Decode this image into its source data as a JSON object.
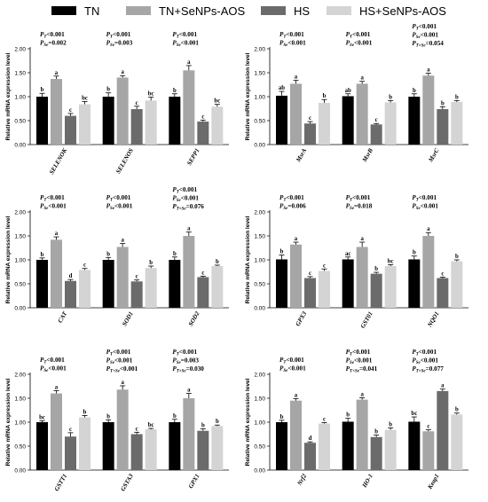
{
  "legend": [
    {
      "label": "TN",
      "color": "#000000"
    },
    {
      "label": "TN+SeNPs-AOS",
      "color": "#a6a6a6"
    },
    {
      "label": "HS",
      "color": "#6b6b6b"
    },
    {
      "label": "HS+SeNPs-AOS",
      "color": "#d4d4d4"
    }
  ],
  "chart_data": [
    {
      "type": "bar",
      "ylabel": "Relative mRNA expression level",
      "ylim": [
        0,
        2.0
      ],
      "yticks": [
        "0.00",
        "0.50",
        "1.00",
        "1.50",
        "2.00"
      ],
      "categories": [
        "SELENOK",
        "SELENOS",
        "SEPP1"
      ],
      "series": [
        {
          "name": "TN",
          "values": [
            1.0,
            1.0,
            1.0
          ],
          "errors": [
            0.07,
            0.08,
            0.06
          ],
          "letters": [
            "b",
            "b",
            "b"
          ]
        },
        {
          "name": "TN+SeNPs-AOS",
          "values": [
            1.37,
            1.4,
            1.55
          ],
          "errors": [
            0.06,
            0.04,
            0.1
          ],
          "letters": [
            "a",
            "a",
            "a"
          ]
        },
        {
          "name": "HS",
          "values": [
            0.6,
            0.74,
            0.48
          ],
          "errors": [
            0.05,
            0.06,
            0.03
          ],
          "letters": [
            "c",
            "c",
            "c"
          ]
        },
        {
          "name": "HS+SeNPs-AOS",
          "values": [
            0.84,
            0.92,
            0.79
          ],
          "errors": [
            0.06,
            0.07,
            0.05
          ],
          "letters": [
            "bc",
            "bc",
            "bc"
          ]
        }
      ],
      "pvalues": [
        [
          "PT<0.001",
          "PSe=0.002"
        ],
        [
          "PT<0.001",
          "PSe=0.003"
        ],
        [
          "PT<0.001",
          "PSe<0.001"
        ]
      ]
    },
    {
      "type": "bar",
      "ylabel": "Relative mRNA expression level",
      "ylim": [
        0,
        2.0
      ],
      "yticks": [
        "0.00",
        "0.50",
        "1.00",
        "1.50",
        "2.00"
      ],
      "categories": [
        "MsrA",
        "MsrB",
        "MsrC"
      ],
      "series": [
        {
          "name": "TN",
          "values": [
            1.02,
            1.01,
            1.0
          ],
          "errors": [
            0.09,
            0.05,
            0.06
          ],
          "letters": [
            "ab",
            "ab",
            "b"
          ]
        },
        {
          "name": "TN+SeNPs-AOS",
          "values": [
            1.27,
            1.27,
            1.44
          ],
          "errors": [
            0.07,
            0.05,
            0.05
          ],
          "letters": [
            "a",
            "a",
            "a"
          ]
        },
        {
          "name": "HS",
          "values": [
            0.44,
            0.42,
            0.74
          ],
          "errors": [
            0.04,
            0.02,
            0.05
          ],
          "letters": [
            "c",
            "c",
            "b"
          ]
        },
        {
          "name": "HS+SeNPs-AOS",
          "values": [
            0.87,
            0.88,
            0.89
          ],
          "errors": [
            0.07,
            0.04,
            0.03
          ],
          "letters": [
            "b",
            "b",
            "b"
          ]
        }
      ],
      "pvalues": [
        [
          "PT<0.001",
          "PSe<0.001"
        ],
        [
          "PT<0.001",
          "PSe<0.001"
        ],
        [
          "PT<0.001",
          "PSe<0.001",
          "PT×Se=0.054"
        ]
      ]
    },
    {
      "type": "bar",
      "ylabel": "Relative mRNA expression level",
      "ylim": [
        0,
        2.0
      ],
      "yticks": [
        "0.00",
        "0.50",
        "1.00",
        "1.50",
        "2.00"
      ],
      "categories": [
        "CAT",
        "SOD1",
        "SOD2"
      ],
      "series": [
        {
          "name": "TN",
          "values": [
            1.0,
            1.0,
            1.0
          ],
          "errors": [
            0.04,
            0.05,
            0.06
          ],
          "letters": [
            "b",
            "b",
            "b"
          ]
        },
        {
          "name": "TN+SeNPs-AOS",
          "values": [
            1.42,
            1.27,
            1.5
          ],
          "errors": [
            0.06,
            0.07,
            0.08
          ],
          "letters": [
            "a",
            "a",
            "a"
          ]
        },
        {
          "name": "HS",
          "values": [
            0.56,
            0.55,
            0.64
          ],
          "errors": [
            0.03,
            0.03,
            0.02
          ],
          "letters": [
            "d",
            "c",
            "c"
          ]
        },
        {
          "name": "HS+SeNPs-AOS",
          "values": [
            0.79,
            0.83,
            0.87
          ],
          "errors": [
            0.03,
            0.04,
            0.02
          ],
          "letters": [
            "c",
            "b",
            "b"
          ]
        }
      ],
      "pvalues": [
        [
          "PT<0.001",
          "PSe<0.001"
        ],
        [
          "PT<0.001",
          "PSe<0.001"
        ],
        [
          "PT<0.001",
          "PSe<0.001",
          "PT×Se=0.076"
        ]
      ]
    },
    {
      "type": "bar",
      "ylabel": "Relative mRNA expression level",
      "ylim": [
        0,
        2.0
      ],
      "yticks": [
        "0.00",
        "0.50",
        "1.00",
        "1.50",
        "2.00"
      ],
      "categories": [
        "GPX3",
        "GST01",
        "NQO1"
      ],
      "series": [
        {
          "name": "TN",
          "values": [
            1.01,
            1.01,
            1.01
          ],
          "errors": [
            0.09,
            0.05,
            0.07
          ],
          "letters": [
            "b",
            "ac",
            "b"
          ]
        },
        {
          "name": "TN+SeNPs-AOS",
          "values": [
            1.32,
            1.27,
            1.5
          ],
          "errors": [
            0.05,
            0.1,
            0.07
          ],
          "letters": [
            "a",
            "a",
            "a"
          ]
        },
        {
          "name": "HS",
          "values": [
            0.62,
            0.71,
            0.62
          ],
          "errors": [
            0.03,
            0.03,
            0.02
          ],
          "letters": [
            "c",
            "b",
            "c"
          ]
        },
        {
          "name": "HS+SeNPs-AOS",
          "values": [
            0.77,
            0.87,
            0.97
          ],
          "errors": [
            0.04,
            0.03,
            0.03
          ],
          "letters": [
            "c",
            "bc",
            "b"
          ]
        }
      ],
      "pvalues": [
        [
          "PT<0.001",
          "PSe=0.006"
        ],
        [
          "PT<0.001",
          "PSe=0.018"
        ],
        [
          "PT<0.001",
          "PSe<0.001"
        ]
      ]
    },
    {
      "type": "bar",
      "ylabel": "Relative mRNA expression level",
      "ylim": [
        0,
        2.0
      ],
      "yticks": [
        "0.00",
        "0.50",
        "1.00",
        "1.50",
        "2.00"
      ],
      "categories": [
        "GSTT1",
        "GSTA3",
        "GPX1"
      ],
      "series": [
        {
          "name": "TN",
          "values": [
            1.0,
            1.0,
            1.0
          ],
          "errors": [
            0.03,
            0.05,
            0.06
          ],
          "letters": [
            "bc",
            "b",
            "b"
          ]
        },
        {
          "name": "TN+SeNPs-AOS",
          "values": [
            1.6,
            1.68,
            1.5
          ],
          "errors": [
            0.06,
            0.08,
            0.1
          ],
          "letters": [
            "a",
            "a",
            "a"
          ]
        },
        {
          "name": "HS",
          "values": [
            0.7,
            0.75,
            0.82
          ],
          "errors": [
            0.08,
            0.04,
            0.04
          ],
          "letters": [
            "c",
            "c",
            "b"
          ]
        },
        {
          "name": "HS+SeNPs-AOS",
          "values": [
            1.1,
            0.85,
            0.92
          ],
          "errors": [
            0.04,
            0.02,
            0.02
          ],
          "letters": [
            "b",
            "bc",
            "b"
          ]
        }
      ],
      "pvalues": [
        [
          "PT<0.001",
          "PSe<0.001"
        ],
        [
          "PT<0.001",
          "PSe<0.001",
          "PT×Se<0.001"
        ],
        [
          "PT<0.001",
          "PSe=0.003",
          "PT×Se=0.030"
        ]
      ]
    },
    {
      "type": "bar",
      "ylabel": "Relative mRNA expression level",
      "ylim": [
        0,
        2.0
      ],
      "yticks": [
        "0.00",
        "0.50",
        "1.00",
        "1.50",
        "2.00"
      ],
      "categories": [
        "Nrf2",
        "HO-1",
        "Keap1"
      ],
      "series": [
        {
          "name": "TN",
          "values": [
            1.0,
            1.01,
            1.01
          ],
          "errors": [
            0.04,
            0.07,
            0.1
          ],
          "letters": [
            "b",
            "b",
            "bc"
          ]
        },
        {
          "name": "TN+SeNPs-AOS",
          "values": [
            1.45,
            1.47,
            0.81
          ],
          "errors": [
            0.04,
            0.04,
            0.03
          ],
          "letters": [
            "a",
            "a",
            "c"
          ]
        },
        {
          "name": "HS",
          "values": [
            0.57,
            0.69,
            1.65
          ],
          "errors": [
            0.02,
            0.04,
            0.04
          ],
          "letters": [
            "d",
            "b",
            "a"
          ]
        },
        {
          "name": "HS+SeNPs-AOS",
          "values": [
            0.97,
            0.84,
            1.16
          ],
          "errors": [
            0.02,
            0.04,
            0.03
          ],
          "letters": [
            "c",
            "b",
            "b"
          ]
        }
      ],
      "pvalues": [
        [
          "PT<0.001",
          "PSe<0.001"
        ],
        [
          "PT<0.001",
          "PSe<0.001",
          "PT×Se=0.041"
        ],
        [
          "PT<0.001",
          "PSe<0.001",
          "PT×Se=0.077"
        ]
      ]
    }
  ]
}
